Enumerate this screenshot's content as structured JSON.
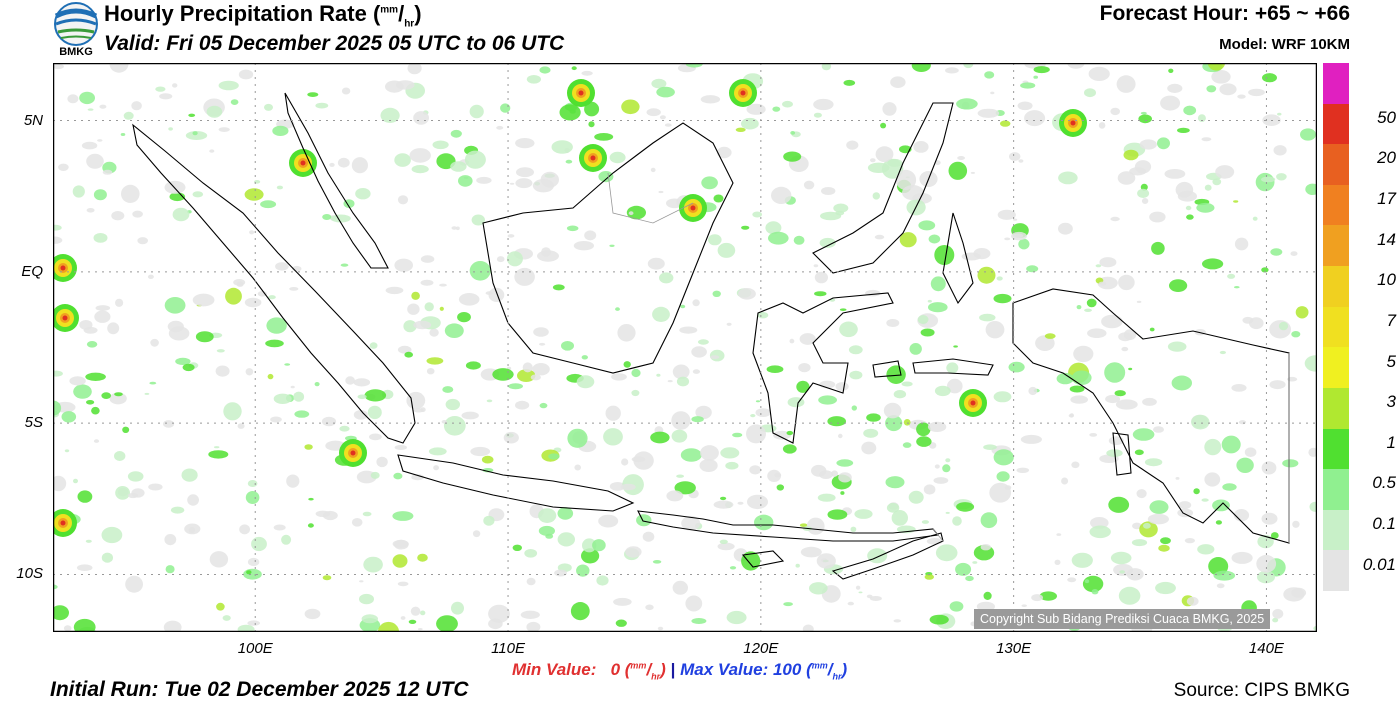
{
  "header": {
    "logo_text": "BMKG",
    "title": "Hourly Precipitation Rate (",
    "title_unit_num": "mm",
    "title_unit_den": "hr",
    "title_close": ")",
    "valid": "Valid: Fri 05 December 2025 05 UTC to 06 UTC",
    "forecast_hour": "Forecast Hour: +65 ~ +66",
    "model": "Model: WRF 10KM"
  },
  "map": {
    "lat_labels": [
      "5N",
      "EQ",
      "5S",
      "10S"
    ],
    "lat_values": [
      5,
      0,
      -5,
      -10
    ],
    "lon_labels": [
      "100E",
      "110E",
      "120E",
      "130E",
      "140E"
    ],
    "lon_values": [
      100,
      110,
      120,
      130,
      140
    ],
    "lon_range": [
      92,
      142
    ],
    "lat_range": [
      6.9,
      -11.9
    ],
    "copyright": "Copyright Sub Bidang Prediksi Cuaca BMKG, 2025",
    "land_color": "#ffffff",
    "coast_color": "#000000",
    "grid_color": "#999999"
  },
  "scale": {
    "labels": [
      "50",
      "20",
      "17",
      "14",
      "10",
      "7",
      "5",
      "3",
      "1",
      "0.5",
      "0.1",
      "0.01"
    ],
    "colors": [
      "#e020c0",
      "#e03020",
      "#e86020",
      "#f08020",
      "#f0a020",
      "#f0d020",
      "#f0e020",
      "#f0f020",
      "#b0e830",
      "#50e030",
      "#90f090",
      "#c8f0c8",
      "#e4e4e4"
    ]
  },
  "footer": {
    "min_label": "Min Value:",
    "min_value": "0",
    "separator": "|",
    "max_label": "Max Value: 100",
    "unit_num": "mm",
    "unit_den": "hr",
    "initial_run": "Initial Run: Tue 02 December 2025 12 UTC",
    "source": "Source: CIPS BMKG"
  }
}
